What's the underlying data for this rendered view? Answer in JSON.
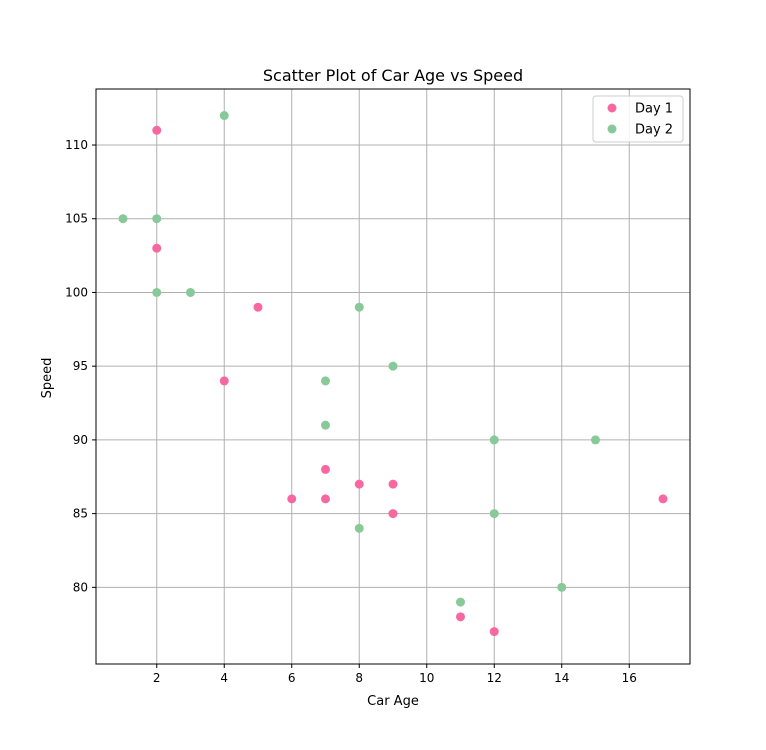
{
  "chart_data": {
    "type": "scatter",
    "title": "Scatter Plot of Car Age vs Speed",
    "xlabel": "Car Age",
    "ylabel": "Speed",
    "xlim": [
      0.2,
      17.8
    ],
    "ylim": [
      74.8,
      113.8
    ],
    "xticks": [
      2,
      4,
      6,
      8,
      10,
      12,
      14,
      16
    ],
    "yticks": [
      80,
      85,
      90,
      95,
      100,
      105,
      110
    ],
    "grid": true,
    "legend_position": "top-right",
    "series": [
      {
        "name": "Day 1",
        "color": "#f768a1",
        "points": [
          [
            5,
            99
          ],
          [
            7,
            86
          ],
          [
            8,
            87
          ],
          [
            7,
            88
          ],
          [
            2,
            111
          ],
          [
            17,
            86
          ],
          [
            2,
            103
          ],
          [
            9,
            87
          ],
          [
            4,
            94
          ],
          [
            11,
            78
          ],
          [
            12,
            77
          ],
          [
            9,
            85
          ],
          [
            6,
            86
          ]
        ]
      },
      {
        "name": "Day 2",
        "color": "#88c999",
        "points": [
          [
            2,
            100
          ],
          [
            2,
            105
          ],
          [
            8,
            84
          ],
          [
            1,
            105
          ],
          [
            15,
            90
          ],
          [
            8,
            99
          ],
          [
            12,
            90
          ],
          [
            9,
            95
          ],
          [
            7,
            94
          ],
          [
            3,
            100
          ],
          [
            7,
            91
          ],
          [
            4,
            112
          ],
          [
            12,
            85
          ],
          [
            14,
            80
          ],
          [
            11,
            79
          ]
        ]
      }
    ]
  }
}
